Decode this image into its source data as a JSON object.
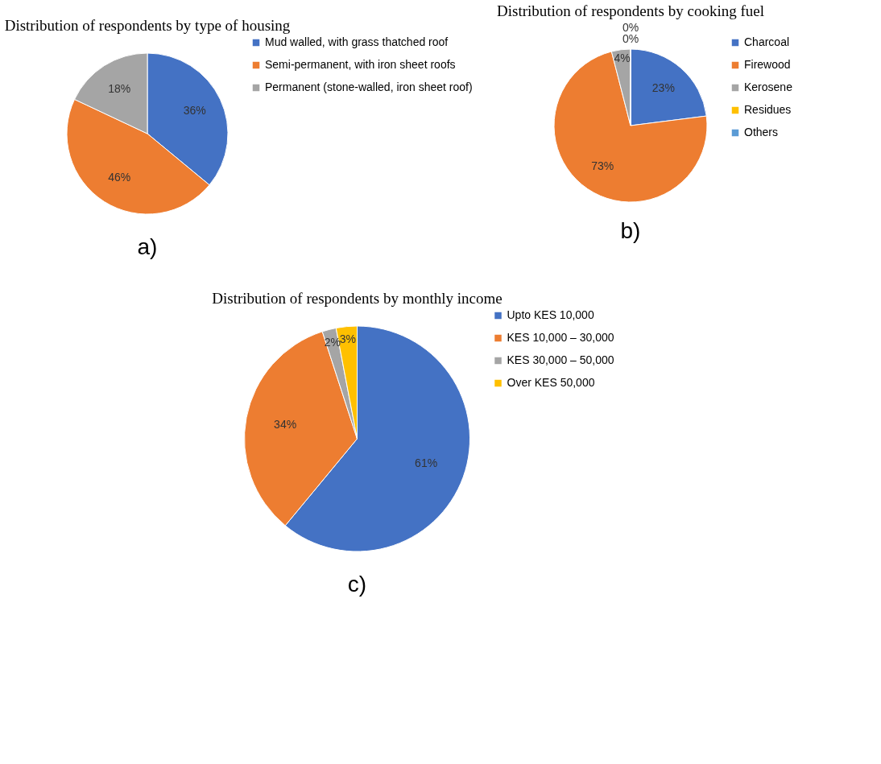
{
  "chart_data": [
    {
      "type": "pie",
      "title": "Distribution of respondents by type of housing",
      "categories": [
        "Mud walled, with grass thatched roof",
        "Semi-permanent, with iron sheet roofs",
        "Permanent (stone-walled, iron sheet roof)"
      ],
      "values": [
        36,
        46,
        18
      ],
      "colors": [
        "#4472c4",
        "#ed7d31",
        "#a5a5a5"
      ],
      "value_labels": [
        "36%",
        "46%",
        "18%"
      ],
      "legend": "right",
      "annotations": [
        "a)"
      ]
    },
    {
      "type": "pie",
      "title": "Distribution of respondents by cooking fuel",
      "categories": [
        "Charcoal",
        "Firewood",
        "Kerosene",
        "Residues",
        "Others"
      ],
      "values": [
        23,
        73,
        4,
        0,
        0
      ],
      "colors": [
        "#4472c4",
        "#ed7d31",
        "#a5a5a5",
        "#ffc000",
        "#5b9bd5"
      ],
      "value_labels": [
        "23%",
        "73%",
        "4%",
        "0%",
        "0%"
      ],
      "legend": "right",
      "annotations": [
        "b)"
      ]
    },
    {
      "type": "pie",
      "title": "Distribution of respondents by monthly income",
      "categories": [
        "Upto KES 10,000",
        "KES 10,000 – 30,000",
        "KES 30,000 – 50,000",
        "Over KES 50,000"
      ],
      "values": [
        61,
        34,
        2,
        3
      ],
      "colors": [
        "#4472c4",
        "#ed7d31",
        "#a5a5a5",
        "#ffc000"
      ],
      "value_labels": [
        "61%",
        "34%",
        "2%",
        "3%"
      ],
      "legend": "right",
      "annotations": [
        "c)"
      ]
    }
  ]
}
